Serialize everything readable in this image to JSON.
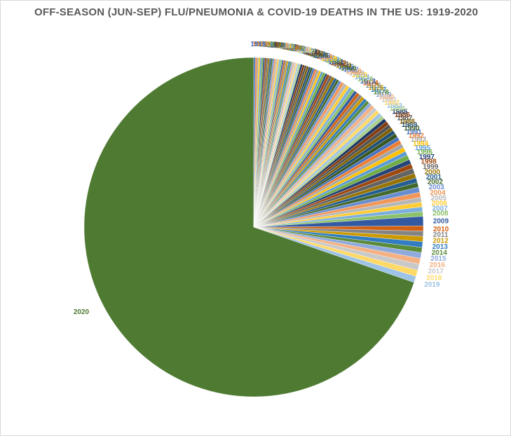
{
  "chart_data": {
    "type": "pie",
    "title": "OFF-SEASON (JUN-SEP) FLU/PNEUMONIA & COVID-19 DEATHS IN THE US:  1919-2020",
    "slices": [
      {
        "label": "1919",
        "value": 0.15,
        "color": "#4472c4"
      },
      {
        "label": "1920",
        "value": 0.15,
        "color": "#ed7d31"
      },
      {
        "label": "1921",
        "value": 0.15,
        "color": "#a5a5a5"
      },
      {
        "label": "1922",
        "value": 0.15,
        "color": "#ffc000"
      },
      {
        "label": "1923",
        "value": 0.15,
        "color": "#5b9bd5"
      },
      {
        "label": "1924",
        "value": 0.15,
        "color": "#70ad47"
      },
      {
        "label": "1925",
        "value": 0.15,
        "color": "#264478"
      },
      {
        "label": "1926",
        "value": 0.15,
        "color": "#9e480e"
      },
      {
        "label": "1927",
        "value": 0.15,
        "color": "#636363"
      },
      {
        "label": "1928",
        "value": 0.15,
        "color": "#997300"
      },
      {
        "label": "1929",
        "value": 0.15,
        "color": "#255e91"
      },
      {
        "label": "1930",
        "value": 0.15,
        "color": "#43682b"
      },
      {
        "label": "1931",
        "value": 0.15,
        "color": "#698ed0"
      },
      {
        "label": "1932",
        "value": 0.15,
        "color": "#f1975a"
      },
      {
        "label": "1933",
        "value": 0.15,
        "color": "#b7b7b7"
      },
      {
        "label": "1934",
        "value": 0.15,
        "color": "#ffcd33"
      },
      {
        "label": "1935",
        "value": 0.15,
        "color": "#7cafdd"
      },
      {
        "label": "1936",
        "value": 0.15,
        "color": "#8cc168"
      },
      {
        "label": "1937",
        "value": 0.15,
        "color": "#335aa1"
      },
      {
        "label": "1938",
        "value": 0.15,
        "color": "#d26012"
      },
      {
        "label": "1939",
        "value": 0.15,
        "color": "#848484"
      },
      {
        "label": "1940",
        "value": 0.15,
        "color": "#cc9a00"
      },
      {
        "label": "1941",
        "value": 0.15,
        "color": "#327dc2"
      },
      {
        "label": "1942",
        "value": 0.15,
        "color": "#5a8b39"
      },
      {
        "label": "1943",
        "value": 0.15,
        "color": "#8faadc"
      },
      {
        "label": "1944",
        "value": 0.15,
        "color": "#f4b183"
      },
      {
        "label": "1945",
        "value": 0.15,
        "color": "#c9c9c9"
      },
      {
        "label": "1946",
        "value": 0.15,
        "color": "#ffd966"
      },
      {
        "label": "1947",
        "value": 0.15,
        "color": "#9dc3e6"
      },
      {
        "label": "1948",
        "value": 0.15,
        "color": "#a9d18e"
      },
      {
        "label": "1949",
        "value": 0.2,
        "color": "#203864"
      },
      {
        "label": "1950",
        "value": 0.2,
        "color": "#843c0c"
      },
      {
        "label": "1951",
        "value": 0.2,
        "color": "#525252"
      },
      {
        "label": "1952",
        "value": 0.2,
        "color": "#7f6000"
      },
      {
        "label": "1953",
        "value": 0.2,
        "color": "#1f4e79"
      },
      {
        "label": "1954",
        "value": 0.2,
        "color": "#385723"
      },
      {
        "label": "1955",
        "value": 0.2,
        "color": "#4472c4"
      },
      {
        "label": "1956",
        "value": 0.2,
        "color": "#ed7d31"
      },
      {
        "label": "1957",
        "value": 0.25,
        "color": "#a5a5a5"
      },
      {
        "label": "1958",
        "value": 0.2,
        "color": "#ffc000"
      },
      {
        "label": "1959",
        "value": 0.2,
        "color": "#5b9bd5"
      },
      {
        "label": "1960",
        "value": 0.25,
        "color": "#70ad47"
      },
      {
        "label": "1961",
        "value": 0.2,
        "color": "#264478"
      },
      {
        "label": "1962",
        "value": 0.25,
        "color": "#9e480e"
      },
      {
        "label": "1963",
        "value": 0.25,
        "color": "#636363"
      },
      {
        "label": "1964",
        "value": 0.25,
        "color": "#997300"
      },
      {
        "label": "1965",
        "value": 0.25,
        "color": "#255e91"
      },
      {
        "label": "1966",
        "value": 0.25,
        "color": "#43682b"
      },
      {
        "label": "1967",
        "value": 0.25,
        "color": "#698ed0"
      },
      {
        "label": "1968",
        "value": 0.3,
        "color": "#f1975a"
      },
      {
        "label": "1969",
        "value": 0.3,
        "color": "#b7b7b7"
      },
      {
        "label": "1970",
        "value": 0.3,
        "color": "#ffcd33"
      },
      {
        "label": "1971",
        "value": 0.3,
        "color": "#7cafdd"
      },
      {
        "label": "1972",
        "value": 0.3,
        "color": "#8cc168"
      },
      {
        "label": "1973",
        "value": 0.3,
        "color": "#335aa1"
      },
      {
        "label": "1974",
        "value": 0.3,
        "color": "#d26012"
      },
      {
        "label": "1975",
        "value": 0.3,
        "color": "#848484"
      },
      {
        "label": "1976",
        "value": 0.3,
        "color": "#cc9a00"
      },
      {
        "label": "1977",
        "value": 0.3,
        "color": "#327dc2"
      },
      {
        "label": "1978",
        "value": 0.3,
        "color": "#5a8b39"
      },
      {
        "label": "1979",
        "value": 0.3,
        "color": "#8faadc"
      },
      {
        "label": "1980",
        "value": 0.35,
        "color": "#f4b183"
      },
      {
        "label": "1981",
        "value": 0.35,
        "color": "#c9c9c9"
      },
      {
        "label": "1982",
        "value": 0.35,
        "color": "#ffd966"
      },
      {
        "label": "1983",
        "value": 0.35,
        "color": "#9dc3e6"
      },
      {
        "label": "1984",
        "value": 0.35,
        "color": "#a9d18e"
      },
      {
        "label": "1985",
        "value": 0.35,
        "color": "#203864"
      },
      {
        "label": "1986",
        "value": 0.35,
        "color": "#843c0c"
      },
      {
        "label": "1987",
        "value": 0.35,
        "color": "#525252"
      },
      {
        "label": "1988",
        "value": 0.35,
        "color": "#7f6000"
      },
      {
        "label": "1989",
        "value": 0.35,
        "color": "#1f4e79"
      },
      {
        "label": "1990",
        "value": 0.4,
        "color": "#385723"
      },
      {
        "label": "1991",
        "value": 0.35,
        "color": "#4472c4"
      },
      {
        "label": "1992",
        "value": 0.4,
        "color": "#ed7d31"
      },
      {
        "label": "1993",
        "value": 0.4,
        "color": "#a5a5a5"
      },
      {
        "label": "1994",
        "value": 0.4,
        "color": "#ffc000"
      },
      {
        "label": "1995",
        "value": 0.4,
        "color": "#5b9bd5"
      },
      {
        "label": "1996",
        "value": 0.45,
        "color": "#70ad47"
      },
      {
        "label": "1997",
        "value": 0.45,
        "color": "#264478"
      },
      {
        "label": "1998",
        "value": 0.45,
        "color": "#9e480e"
      },
      {
        "label": "1999",
        "value": 0.5,
        "color": "#636363"
      },
      {
        "label": "2000",
        "value": 0.45,
        "color": "#997300"
      },
      {
        "label": "2001",
        "value": 0.45,
        "color": "#255e91"
      },
      {
        "label": "2002",
        "value": 0.45,
        "color": "#43682b"
      },
      {
        "label": "2003",
        "value": 0.5,
        "color": "#698ed0"
      },
      {
        "label": "2004",
        "value": 0.5,
        "color": "#f1975a"
      },
      {
        "label": "2005",
        "value": 0.45,
        "color": "#b7b7b7"
      },
      {
        "label": "2006",
        "value": 0.45,
        "color": "#ffcd33"
      },
      {
        "label": "2007",
        "value": 0.45,
        "color": "#7cafdd"
      },
      {
        "label": "2008",
        "value": 0.45,
        "color": "#8cc168"
      },
      {
        "label": "2009",
        "value": 0.9,
        "color": "#335aa1"
      },
      {
        "label": "2010",
        "value": 0.5,
        "color": "#d26012"
      },
      {
        "label": "2011",
        "value": 0.5,
        "color": "#848484"
      },
      {
        "label": "2012",
        "value": 0.5,
        "color": "#cc9a00"
      },
      {
        "label": "2013",
        "value": 0.55,
        "color": "#327dc2"
      },
      {
        "label": "2014",
        "value": 0.5,
        "color": "#5a8b39"
      },
      {
        "label": "2015",
        "value": 0.55,
        "color": "#8faadc"
      },
      {
        "label": "2016",
        "value": 0.55,
        "color": "#f4b183"
      },
      {
        "label": "2017",
        "value": 0.6,
        "color": "#c9c9c9"
      },
      {
        "label": "2018",
        "value": 0.6,
        "color": "#ffd966"
      },
      {
        "label": "2019",
        "value": 0.6,
        "color": "#9dc3e6"
      },
      {
        "label": "2020",
        "value": 70.2,
        "color": "#a9d18e"
      }
    ]
  }
}
